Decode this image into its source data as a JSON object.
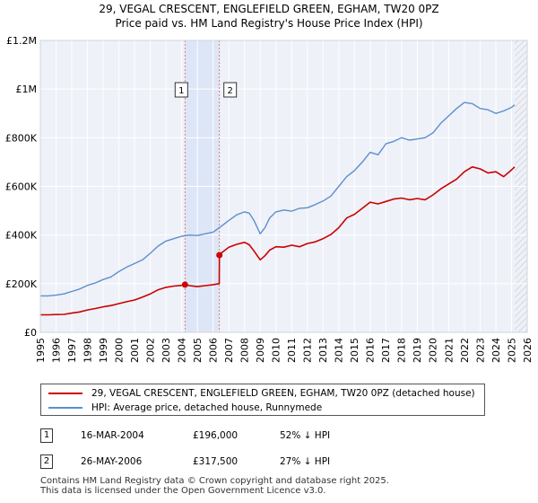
{
  "chart_data": {
    "type": "line",
    "title": "29, VEGAL CRESCENT, ENGLEFIELD GREEN, EGHAM, TW20 0PZ",
    "subtitle": "Price paid vs. HM Land Registry's House Price Index (HPI)",
    "xlabel": "",
    "ylabel": "",
    "xlim": [
      1995,
      2026
    ],
    "ylim": [
      0,
      1200000
    ],
    "x_ticks": [
      "1995",
      "1996",
      "1997",
      "1998",
      "1999",
      "2000",
      "2001",
      "2002",
      "2003",
      "2004",
      "2005",
      "2006",
      "2007",
      "2008",
      "2009",
      "2010",
      "2011",
      "2012",
      "2013",
      "2014",
      "2015",
      "2016",
      "2017",
      "2018",
      "2019",
      "2020",
      "2021",
      "2022",
      "2023",
      "2024",
      "2025",
      "2026"
    ],
    "y_ticks": [
      {
        "value": 0,
        "label": "£0"
      },
      {
        "value": 200000,
        "label": "£200K"
      },
      {
        "value": 400000,
        "label": "£400K"
      },
      {
        "value": 600000,
        "label": "£600K"
      },
      {
        "value": 800000,
        "label": "£800K"
      },
      {
        "value": 1000000,
        "label": "£1M"
      },
      {
        "value": 1200000,
        "label": "£1.2M"
      }
    ],
    "grid": true,
    "shaded_period": [
      2004.21,
      2006.4
    ],
    "future_hatch_from": 2025.2,
    "series": [
      {
        "name": "29, VEGAL CRESCENT, ENGLEFIELD GREEN, EGHAM, TW20 0PZ (detached house)",
        "color": "#cc0000",
        "x": [
          1995,
          1995.5,
          1996,
          1996.5,
          1997,
          1997.5,
          1998,
          1998.5,
          1999,
          1999.5,
          2000,
          2000.5,
          2001,
          2001.5,
          2002,
          2002.5,
          2003,
          2003.5,
          2004,
          2004.21,
          2004.5,
          2005,
          2005.5,
          2006,
          2006.39,
          2006.4,
          2006.5,
          2007,
          2007.5,
          2008,
          2008.3,
          2008.6,
          2009,
          2009.3,
          2009.6,
          2010,
          2010.5,
          2011,
          2011.5,
          2012,
          2012.5,
          2013,
          2013.5,
          2014,
          2014.5,
          2015,
          2015.5,
          2016,
          2016.5,
          2017,
          2017.5,
          2018,
          2018.5,
          2019,
          2019.5,
          2020,
          2020.5,
          2021,
          2021.5,
          2022,
          2022.5,
          2023,
          2023.5,
          2024,
          2024.5,
          2025,
          2025.2
        ],
        "y": [
          72000,
          72000,
          73000,
          74000,
          79000,
          84000,
          92000,
          98000,
          105000,
          110000,
          118000,
          126000,
          133000,
          145000,
          158000,
          175000,
          185000,
          190000,
          193000,
          196000,
          192000,
          188000,
          192000,
          196000,
          200000,
          317500,
          325000,
          350000,
          362000,
          370000,
          360000,
          335000,
          298000,
          315000,
          338000,
          352000,
          350000,
          358000,
          352000,
          365000,
          372000,
          385000,
          402000,
          430000,
          470000,
          485000,
          510000,
          535000,
          528000,
          538000,
          548000,
          552000,
          545000,
          550000,
          545000,
          565000,
          590000,
          610000,
          630000,
          660000,
          680000,
          672000,
          655000,
          660000,
          640000,
          668000,
          680000
        ]
      },
      {
        "name": "HPI: Average price, detached house, Runnymede",
        "color": "#5b8fd0",
        "x": [
          1995,
          1995.5,
          1996,
          1996.5,
          1997,
          1997.5,
          1998,
          1998.5,
          1999,
          1999.5,
          2000,
          2000.5,
          2001,
          2001.5,
          2002,
          2002.5,
          2003,
          2003.5,
          2004,
          2004.5,
          2005,
          2005.5,
          2006,
          2006.5,
          2007,
          2007.5,
          2008,
          2008.3,
          2008.6,
          2009,
          2009.3,
          2009.6,
          2010,
          2010.5,
          2011,
          2011.5,
          2012,
          2012.5,
          2013,
          2013.5,
          2014,
          2014.5,
          2015,
          2015.5,
          2016,
          2016.5,
          2017,
          2017.5,
          2018,
          2018.5,
          2019,
          2019.5,
          2020,
          2020.5,
          2021,
          2021.5,
          2022,
          2022.5,
          2023,
          2023.5,
          2024,
          2024.5,
          2025,
          2025.2
        ],
        "y": [
          150000,
          150000,
          153000,
          158000,
          168000,
          178000,
          193000,
          203000,
          217000,
          228000,
          250000,
          268000,
          283000,
          298000,
          325000,
          355000,
          375000,
          385000,
          395000,
          400000,
          398000,
          405000,
          412000,
          435000,
          460000,
          483000,
          495000,
          490000,
          460000,
          405000,
          430000,
          470000,
          495000,
          503000,
          498000,
          510000,
          512000,
          525000,
          540000,
          560000,
          600000,
          640000,
          665000,
          700000,
          740000,
          730000,
          775000,
          785000,
          800000,
          790000,
          795000,
          800000,
          820000,
          860000,
          890000,
          920000,
          945000,
          940000,
          920000,
          915000,
          900000,
          910000,
          925000,
          935000
        ]
      }
    ],
    "sales": [
      {
        "id": "1",
        "x": 2004.21,
        "y": 196000
      },
      {
        "id": "2",
        "x": 2006.4,
        "y": 317500
      }
    ]
  },
  "legend": {
    "property_label": "29, VEGAL CRESCENT, ENGLEFIELD GREEN, EGHAM, TW20 0PZ (detached house)",
    "hpi_label": "HPI: Average price, detached house, Runnymede",
    "property_color": "#cc0000",
    "hpi_color": "#5b8fd0"
  },
  "transactions": [
    {
      "id": "1",
      "date": "16-MAR-2004",
      "price": "£196,000",
      "hpi": "52% ↓ HPI"
    },
    {
      "id": "2",
      "date": "26-MAY-2006",
      "price": "£317,500",
      "hpi": "27% ↓ HPI"
    }
  ],
  "footer": {
    "line1": "Contains HM Land Registry data © Crown copyright and database right 2025.",
    "line2": "This data is licensed under the Open Government Licence v3.0."
  }
}
